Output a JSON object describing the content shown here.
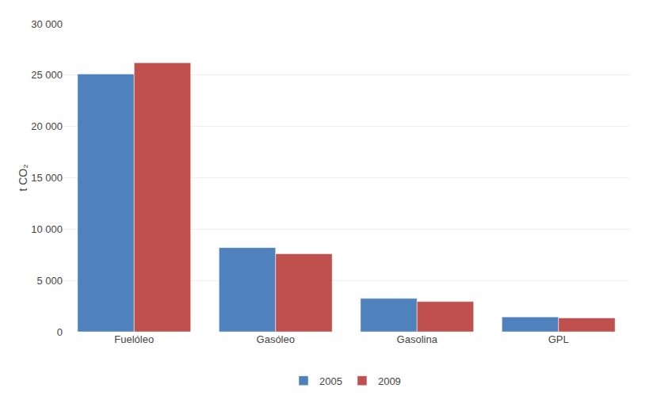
{
  "chart_data": {
    "type": "bar",
    "categories": [
      "Fuelóleo",
      "Gasóleo",
      "Gasolina",
      "GPL"
    ],
    "series": [
      {
        "name": "2005",
        "color": "#4F81BD",
        "values": [
          25100,
          8200,
          3250,
          1450
        ]
      },
      {
        "name": "2009",
        "color": "#C0504D",
        "values": [
          26200,
          7600,
          2950,
          1350
        ]
      }
    ],
    "ylabel": "t CO₂",
    "ylim": [
      0,
      30000
    ],
    "yticks": [
      0,
      {
        "value": 5000,
        "label": "5 000"
      },
      {
        "value": 10000,
        "label": "10 000"
      },
      {
        "value": 15000,
        "label": "15 000"
      },
      {
        "value": 20000,
        "label": "20 000"
      },
      {
        "value": 25000,
        "label": "25 000"
      },
      {
        "value": 30000,
        "label": "30 000"
      }
    ],
    "grid": true,
    "legend": "bottom"
  }
}
